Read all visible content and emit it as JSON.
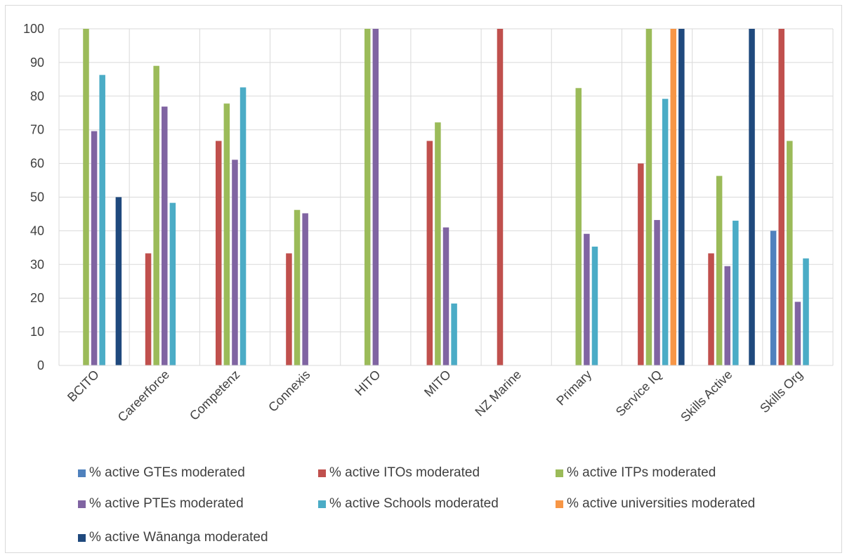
{
  "chart_data": {
    "type": "bar",
    "title": "",
    "xlabel": "",
    "ylabel": "",
    "ylim": [
      0,
      100
    ],
    "yticks": [
      0,
      10,
      20,
      30,
      40,
      50,
      60,
      70,
      80,
      90,
      100
    ],
    "grid": true,
    "legend_position": "bottom",
    "categories": [
      "BCITO",
      "Careerforce",
      "Competenz",
      "Connexis",
      "HITO",
      "MITO",
      "NZ Marine",
      "Primary",
      "Service IQ",
      "Skills Active",
      "Skills Org"
    ],
    "series": [
      {
        "name": "% active GTEs moderated",
        "color": "#4F81BD",
        "values": [
          0,
          0,
          0,
          0,
          0,
          0,
          0,
          0,
          0,
          0,
          40
        ]
      },
      {
        "name": "% active ITOs moderated",
        "color": "#C0504D",
        "values": [
          0,
          33.3,
          66.7,
          33.3,
          0,
          66.7,
          100,
          0,
          60,
          33.3,
          100
        ]
      },
      {
        "name": "% active ITPs moderated",
        "color": "#9BBB59",
        "values": [
          100,
          89,
          77.8,
          46.2,
          100,
          72.2,
          0,
          82.4,
          100,
          56.3,
          66.7
        ]
      },
      {
        "name": "% active PTEs moderated",
        "color": "#8064A2",
        "values": [
          69.6,
          76.9,
          61.1,
          45.2,
          100,
          41,
          0,
          39.1,
          43.2,
          29.5,
          18.9
        ]
      },
      {
        "name": "% active Schools moderated",
        "color": "#4BACC6",
        "values": [
          86.3,
          48.3,
          82.6,
          0,
          0,
          18.4,
          0,
          35.3,
          79.2,
          43,
          31.8
        ]
      },
      {
        "name": "% active universities moderated",
        "color": "#F79646",
        "values": [
          0,
          0,
          0,
          0,
          0,
          0,
          0,
          0,
          100,
          0,
          0
        ]
      },
      {
        "name": "% active Wānanga moderated",
        "color": "#1F497D",
        "values": [
          50,
          0,
          0,
          0,
          0,
          0,
          0,
          0,
          100,
          100,
          0
        ]
      }
    ]
  }
}
